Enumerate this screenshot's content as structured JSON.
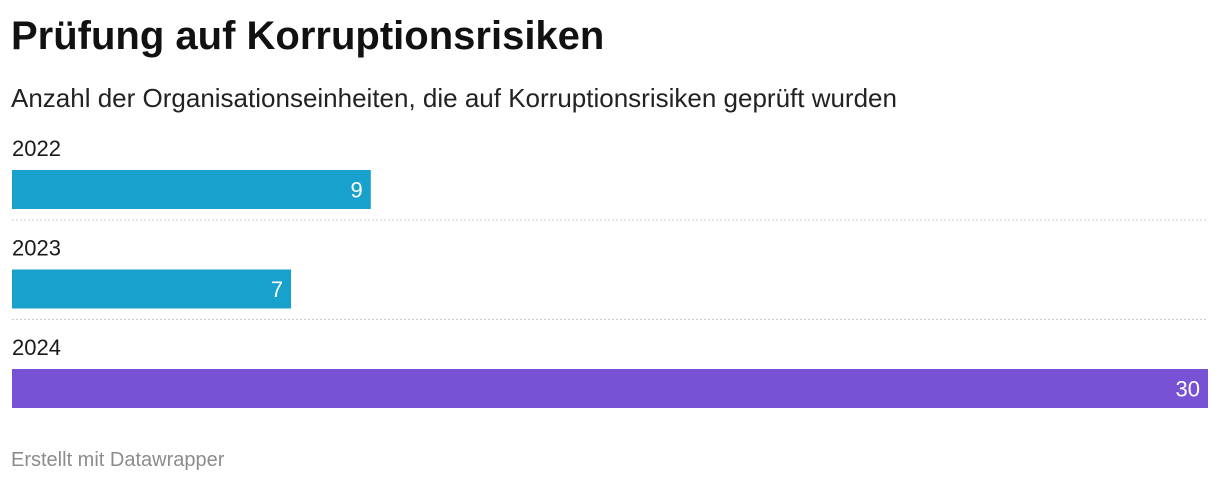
{
  "chart_data": {
    "type": "bar",
    "orientation": "horizontal",
    "title": "Prüfung auf Korruptionsrisiken",
    "subtitle": "Anzahl der Organisationseinheiten, die auf Korruptionsrisiken geprüft wurden",
    "categories": [
      "2022",
      "2023",
      "2024"
    ],
    "values": [
      9,
      7,
      30
    ],
    "colors": [
      "#18a1cd",
      "#18a1cd",
      "#7752d4"
    ],
    "value_label_color": "#ffffff",
    "separator_color": "#cccccc",
    "xlim": [
      0,
      30
    ],
    "grid": false,
    "legend": "none"
  },
  "footer": {
    "credit": "Erstellt mit Datawrapper"
  }
}
